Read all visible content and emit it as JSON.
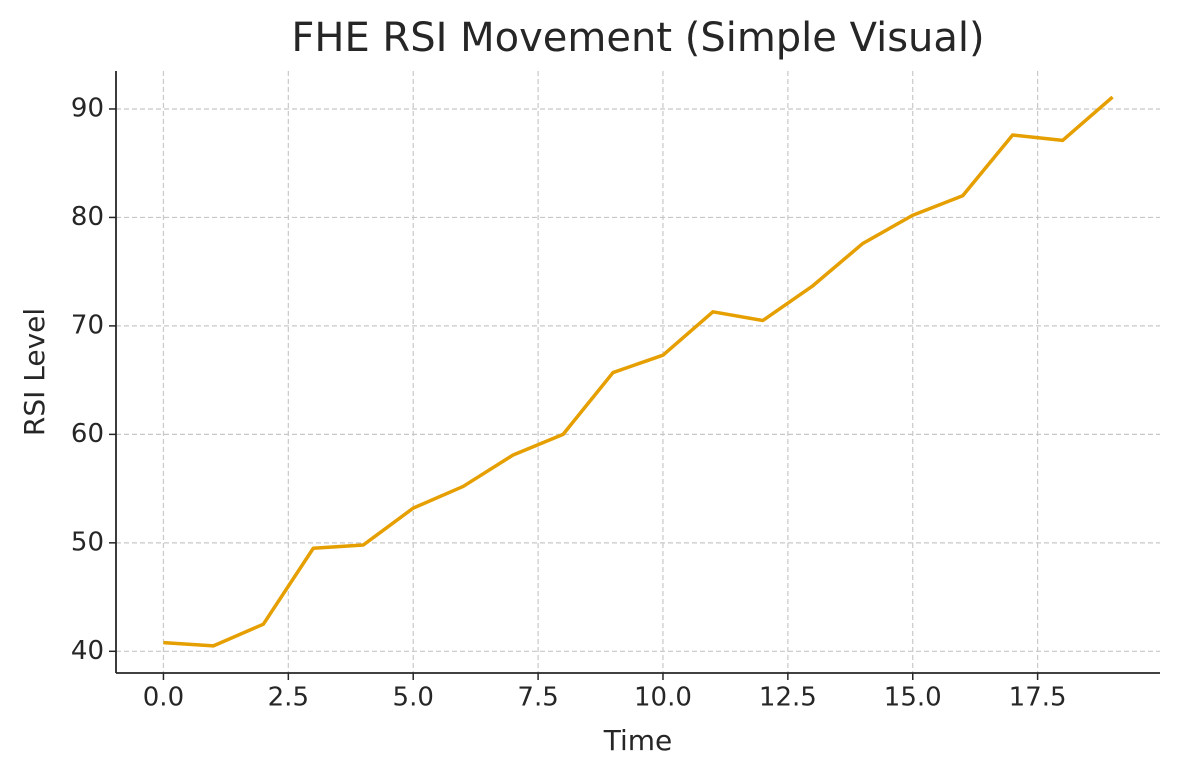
{
  "chart_data": {
    "type": "line",
    "title": "FHE RSI Movement (Simple Visual)",
    "x_label": "Time",
    "y_label": "RSI Level",
    "x": [
      0,
      1,
      2,
      3,
      4,
      5,
      6,
      7,
      8,
      9,
      10,
      11,
      12,
      13,
      14,
      15,
      16,
      17,
      18,
      19
    ],
    "series": [
      {
        "color": "#E69F00",
        "values": [
          40.8,
          40.5,
          42.5,
          49.5,
          49.8,
          53.2,
          55.2,
          58.1,
          60.0,
          65.7,
          67.3,
          71.3,
          70.5,
          73.7,
          77.6,
          80.2,
          82.0,
          87.6,
          87.1,
          91.1
        ]
      }
    ],
    "xlim": [
      -0.95,
      19.95
    ],
    "ylim": [
      38.0,
      93.5
    ],
    "xticks": [
      {
        "value": 0,
        "label": "0.0"
      },
      {
        "value": 2.5,
        "label": "2.5"
      },
      {
        "value": 5,
        "label": "5.0"
      },
      {
        "value": 7.5,
        "label": "7.5"
      },
      {
        "value": 10,
        "label": "10.0"
      },
      {
        "value": 12.5,
        "label": "12.5"
      },
      {
        "value": 15,
        "label": "15.0"
      },
      {
        "value": 17.5,
        "label": "17.5"
      }
    ],
    "yticks": [
      40,
      50,
      60,
      70,
      80,
      90
    ],
    "grid": true
  }
}
